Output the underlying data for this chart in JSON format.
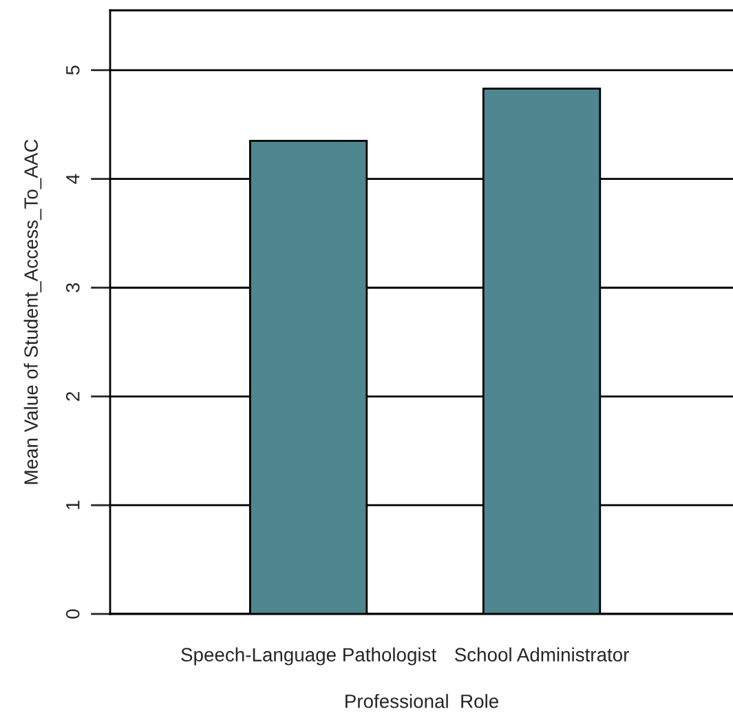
{
  "chart_data": {
    "type": "bar",
    "xlabel": "Professional  Role",
    "ylabel": "Mean Value of Student_Access_To_AAC",
    "categories": [
      "Speech-Language Pathologist",
      "School Administrator"
    ],
    "values": [
      4.35,
      4.83
    ],
    "color": "#4e878f",
    "ylim": [
      0,
      5.55
    ],
    "yticks": [
      0,
      1,
      2,
      3,
      4,
      5
    ],
    "grid": "y",
    "legend": false
  }
}
